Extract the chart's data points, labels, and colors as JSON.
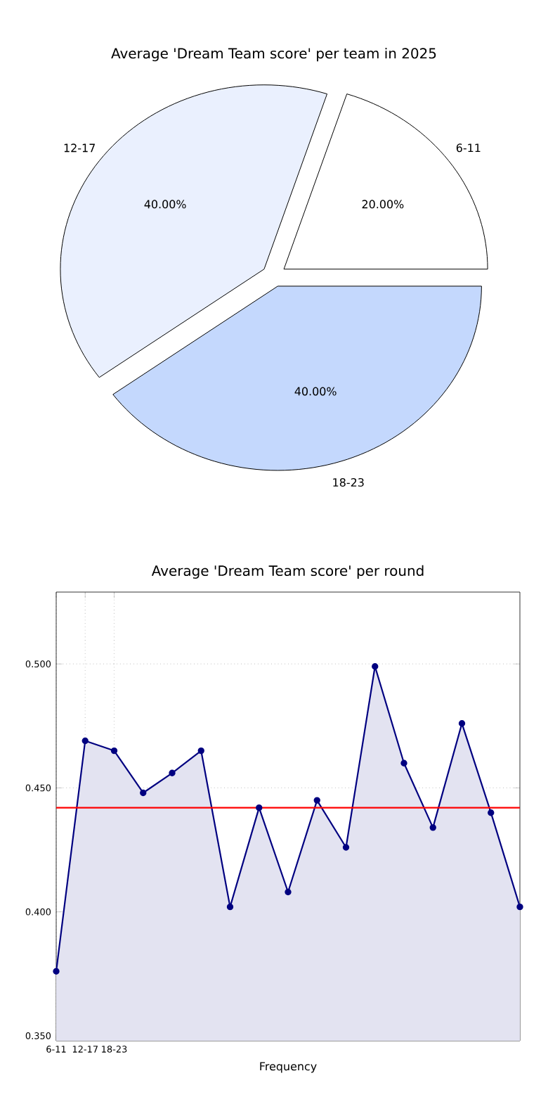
{
  "chart_data": [
    {
      "type": "pie",
      "title": "Average 'Dream Team score' per team in 2025",
      "categories": [
        "6-11",
        "12-17",
        "18-23"
      ],
      "values": [
        20,
        40,
        40
      ],
      "colors": [
        "#ffffff",
        "#eaf0fe",
        "#c4d8fd"
      ],
      "value_labels": [
        "20.00%",
        "40.00%",
        "40.00%"
      ]
    },
    {
      "type": "area",
      "title": "Average 'Dream Team score' per round",
      "xlabel": "Frequency",
      "categories": [
        "6-11",
        "12-17",
        "18-23",
        null,
        null,
        null,
        null,
        null,
        null,
        null,
        null,
        null,
        null,
        null,
        null,
        null,
        null
      ],
      "series": [
        {
          "color": "#000080",
          "values": [
            0.376,
            0.469,
            0.465,
            0.448,
            0.456,
            0.465,
            0.402,
            0.442,
            0.408,
            0.445,
            0.426,
            0.499,
            0.46,
            0.434,
            0.476,
            0.44,
            0.402
          ]
        }
      ],
      "ylim": [
        0.348,
        0.529
      ],
      "yticks": [
        {
          "value": 0.35,
          "label": "0.350"
        },
        {
          "value": 0.4,
          "label": "0.400"
        },
        {
          "value": 0.45,
          "label": "0.450"
        },
        {
          "value": 0.5,
          "label": "0.500"
        }
      ],
      "ref_lines": [
        {
          "axis": "y",
          "value": 0.442,
          "color": "#ff0000"
        }
      ],
      "grid": true,
      "marker": "circle",
      "line_style": "solid"
    }
  ]
}
